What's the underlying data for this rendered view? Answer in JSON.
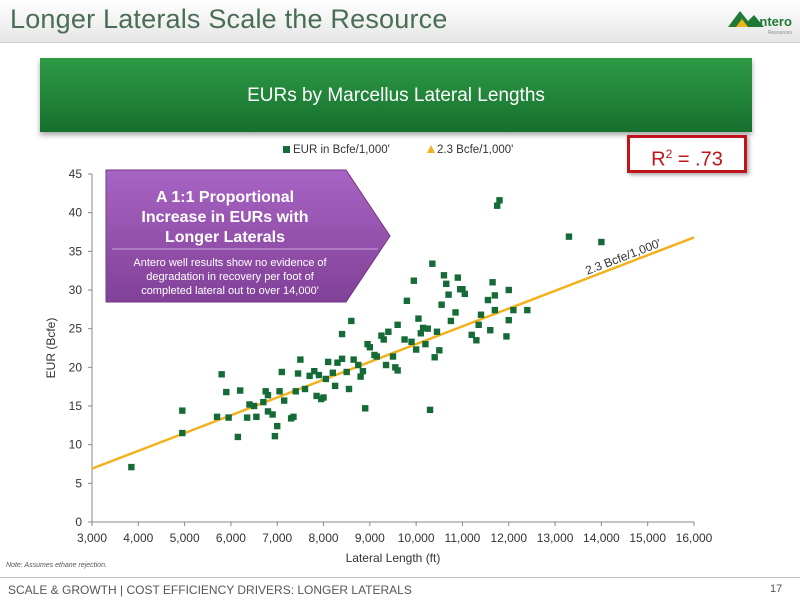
{
  "slide": {
    "title": "Longer Laterals Scale the Resource",
    "logo_text": "Antero",
    "logo_subtext": "Resources",
    "band_title": "EURs by Marcellus Lateral Lengths",
    "r2_label_prefix": "R",
    "r2_label_sup": "2",
    "r2_label_value": " = .73",
    "note": "Note: Assumes ethane rejection.",
    "footer": "SCALE & GROWTH | COST EFFICIENCY DRIVERS: LONGER LATERALS",
    "page_number": "17",
    "colors": {
      "green": "#1f8a3a",
      "marker": "#156b38",
      "trend": "#f2b21c",
      "callout": "#8e4aa5",
      "accent_red": "#c0141b"
    }
  },
  "callout": {
    "heading": "A 1:1 Proportional Increase in EURs with Longer Laterals",
    "heading_lines": [
      "A 1:1 Proportional",
      "Increase in EURs with",
      "Longer Laterals"
    ],
    "body_lines": [
      "Antero well results show no evidence of",
      "degradation in recovery per foot of",
      "completed lateral out to over 14,000'"
    ]
  },
  "chart_data": {
    "type": "scatter",
    "xlabel": "Lateral Length (ft)",
    "ylabel": "EUR (Bcfe)",
    "xlim": [
      3000,
      16000
    ],
    "ylim": [
      0,
      45
    ],
    "x_ticks": [
      "3,000",
      "4,000",
      "5,000",
      "6,000",
      "7,000",
      "8,000",
      "9,000",
      "10,000",
      "11,000",
      "12,000",
      "13,000",
      "14,000",
      "15,000",
      "16,000"
    ],
    "y_ticks": [
      "0",
      "5",
      "10",
      "15",
      "20",
      "25",
      "30",
      "35",
      "40",
      "45"
    ],
    "grid": false,
    "legend_position": "top-center",
    "series": [
      {
        "name": "EUR in Bcfe/1,000'",
        "marker": "square",
        "points": [
          [
            3850,
            7.1
          ],
          [
            4950,
            11.5
          ],
          [
            4950,
            14.4
          ],
          [
            5700,
            13.6
          ],
          [
            5800,
            19.1
          ],
          [
            5900,
            16.8
          ],
          [
            5950,
            13.5
          ],
          [
            6150,
            11.0
          ],
          [
            6200,
            17.0
          ],
          [
            6350,
            13.5
          ],
          [
            6400,
            15.2
          ],
          [
            6500,
            15.0
          ],
          [
            6550,
            13.6
          ],
          [
            6700,
            15.5
          ],
          [
            6750,
            16.9
          ],
          [
            6800,
            16.4
          ],
          [
            6800,
            14.3
          ],
          [
            6900,
            13.9
          ],
          [
            6950,
            11.1
          ],
          [
            7000,
            12.4
          ],
          [
            7050,
            16.9
          ],
          [
            7100,
            19.4
          ],
          [
            7150,
            15.7
          ],
          [
            7300,
            13.4
          ],
          [
            7350,
            13.6
          ],
          [
            7400,
            16.9
          ],
          [
            7450,
            19.2
          ],
          [
            7500,
            21.0
          ],
          [
            7600,
            17.2
          ],
          [
            7700,
            18.9
          ],
          [
            7800,
            19.5
          ],
          [
            7850,
            16.3
          ],
          [
            7900,
            19.0
          ],
          [
            7950,
            15.9
          ],
          [
            8000,
            16.1
          ],
          [
            8050,
            18.5
          ],
          [
            8100,
            20.7
          ],
          [
            8200,
            19.3
          ],
          [
            8250,
            17.6
          ],
          [
            8300,
            20.6
          ],
          [
            8400,
            21.1
          ],
          [
            8400,
            24.3
          ],
          [
            8500,
            19.4
          ],
          [
            8550,
            17.2
          ],
          [
            8600,
            26.0
          ],
          [
            8650,
            21.0
          ],
          [
            8750,
            20.3
          ],
          [
            8800,
            18.8
          ],
          [
            8850,
            19.5
          ],
          [
            8900,
            14.7
          ],
          [
            8950,
            23.0
          ],
          [
            9000,
            22.6
          ],
          [
            9100,
            21.6
          ],
          [
            9150,
            21.4
          ],
          [
            9250,
            24.1
          ],
          [
            9300,
            23.6
          ],
          [
            9350,
            20.3
          ],
          [
            9400,
            24.6
          ],
          [
            9500,
            21.4
          ],
          [
            9550,
            20.0
          ],
          [
            9600,
            19.6
          ],
          [
            9600,
            25.5
          ],
          [
            9750,
            23.6
          ],
          [
            9800,
            28.6
          ],
          [
            9900,
            23.3
          ],
          [
            9950,
            31.2
          ],
          [
            10000,
            22.3
          ],
          [
            10050,
            26.3
          ],
          [
            10100,
            24.4
          ],
          [
            10150,
            25.1
          ],
          [
            10200,
            23.0
          ],
          [
            10250,
            25.0
          ],
          [
            10300,
            14.5
          ],
          [
            10350,
            33.4
          ],
          [
            10400,
            21.3
          ],
          [
            10450,
            24.6
          ],
          [
            10500,
            22.2
          ],
          [
            10550,
            28.1
          ],
          [
            10600,
            31.9
          ],
          [
            10650,
            30.8
          ],
          [
            10700,
            29.4
          ],
          [
            10750,
            26.0
          ],
          [
            10850,
            27.1
          ],
          [
            10900,
            31.6
          ],
          [
            10950,
            30.1
          ],
          [
            11000,
            30.1
          ],
          [
            11050,
            29.5
          ],
          [
            11200,
            24.2
          ],
          [
            11300,
            23.5
          ],
          [
            11350,
            25.5
          ],
          [
            11400,
            26.8
          ],
          [
            11550,
            28.7
          ],
          [
            11600,
            24.8
          ],
          [
            11650,
            31.0
          ],
          [
            11700,
            27.4
          ],
          [
            11700,
            29.3
          ],
          [
            11750,
            40.9
          ],
          [
            11800,
            41.6
          ],
          [
            11950,
            24.0
          ],
          [
            12000,
            26.1
          ],
          [
            12000,
            30.0
          ],
          [
            12100,
            27.4
          ],
          [
            12400,
            27.4
          ],
          [
            13300,
            36.9
          ],
          [
            14000,
            36.2
          ]
        ]
      },
      {
        "name": "2.3 Bcfe/1,000'",
        "marker": "triangle",
        "type": "line",
        "slope_bcfe_per_1000ft": 2.3,
        "points": [
          [
            3000,
            6.9
          ],
          [
            16000,
            36.8
          ]
        ]
      }
    ],
    "annotations": [
      {
        "text": "2.3 Bcfe/1,000'",
        "x": 14500,
        "y": 33.8,
        "note": "label along trend line"
      }
    ]
  }
}
